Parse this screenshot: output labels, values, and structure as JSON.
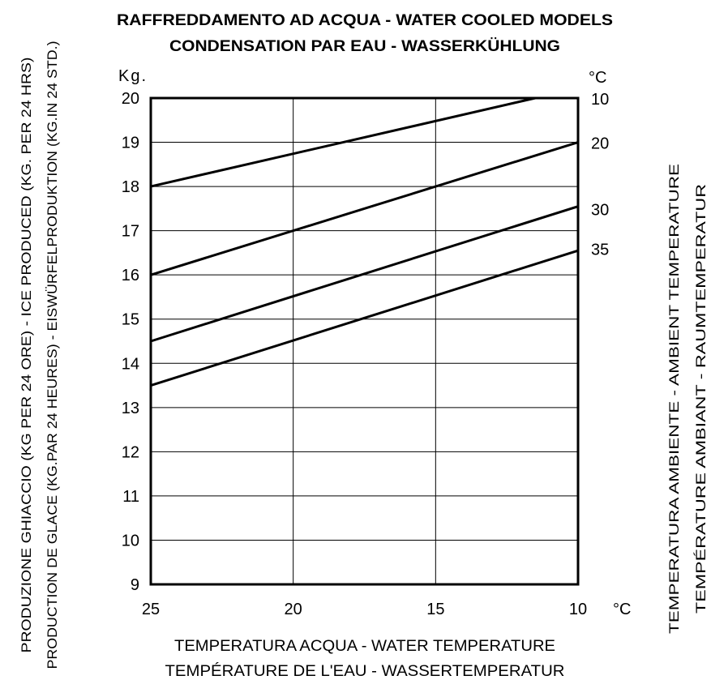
{
  "chart_data": {
    "type": "line",
    "title": [
      "RAFFREDDAMENTO AD ACQUA - WATER COOLED MODELS",
      "CONDENSATION PAR EAU - WASSERKÜHLUNG"
    ],
    "y_unit": "Kg.",
    "x_unit": "°C",
    "series_unit": "°C",
    "ylabel": [
      "PRODUZIONE GHIACCIO (KG PER 24 ORE) - ICE PRODUCED (KG. PER 24 HRS)",
      "PRODUCTION DE GLACE (KG.PAR 24 HEURES) - EISWÜRFELPRODUKTION (KG.IN 24 STD.)"
    ],
    "xlabel": [
      "TEMPERATURA ACQUA - WATER TEMPERATURE",
      "TEMPÉRATURE DE L'EAU  - WASSERTEMPERATUR"
    ],
    "series_axis_label": [
      "TEMPERATURA AMBIENTE - AMBIENT TEMPERATURE",
      "TEMPÉRATURE AMBIANT - RAUMTEMPERATUR"
    ],
    "x_ticks": [
      "25",
      "20",
      "15",
      "10"
    ],
    "y_ticks": [
      "9",
      "10",
      "11",
      "12",
      "13",
      "14",
      "15",
      "16",
      "17",
      "18",
      "19",
      "20"
    ],
    "xlim": [
      25,
      10
    ],
    "ylim": [
      9,
      20
    ],
    "grid": true,
    "series": [
      {
        "name": "10",
        "points": [
          [
            25,
            18.0
          ],
          [
            11.5,
            20.0
          ]
        ]
      },
      {
        "name": "20",
        "points": [
          [
            25,
            16.0
          ],
          [
            10,
            19.0
          ]
        ]
      },
      {
        "name": "30",
        "points": [
          [
            25,
            14.5
          ],
          [
            10,
            17.55
          ]
        ]
      },
      {
        "name": "35",
        "points": [
          [
            25,
            13.5
          ],
          [
            10,
            16.55
          ]
        ]
      }
    ],
    "series_label_values": [
      20.0,
      19.0,
      17.5,
      16.6
    ]
  }
}
